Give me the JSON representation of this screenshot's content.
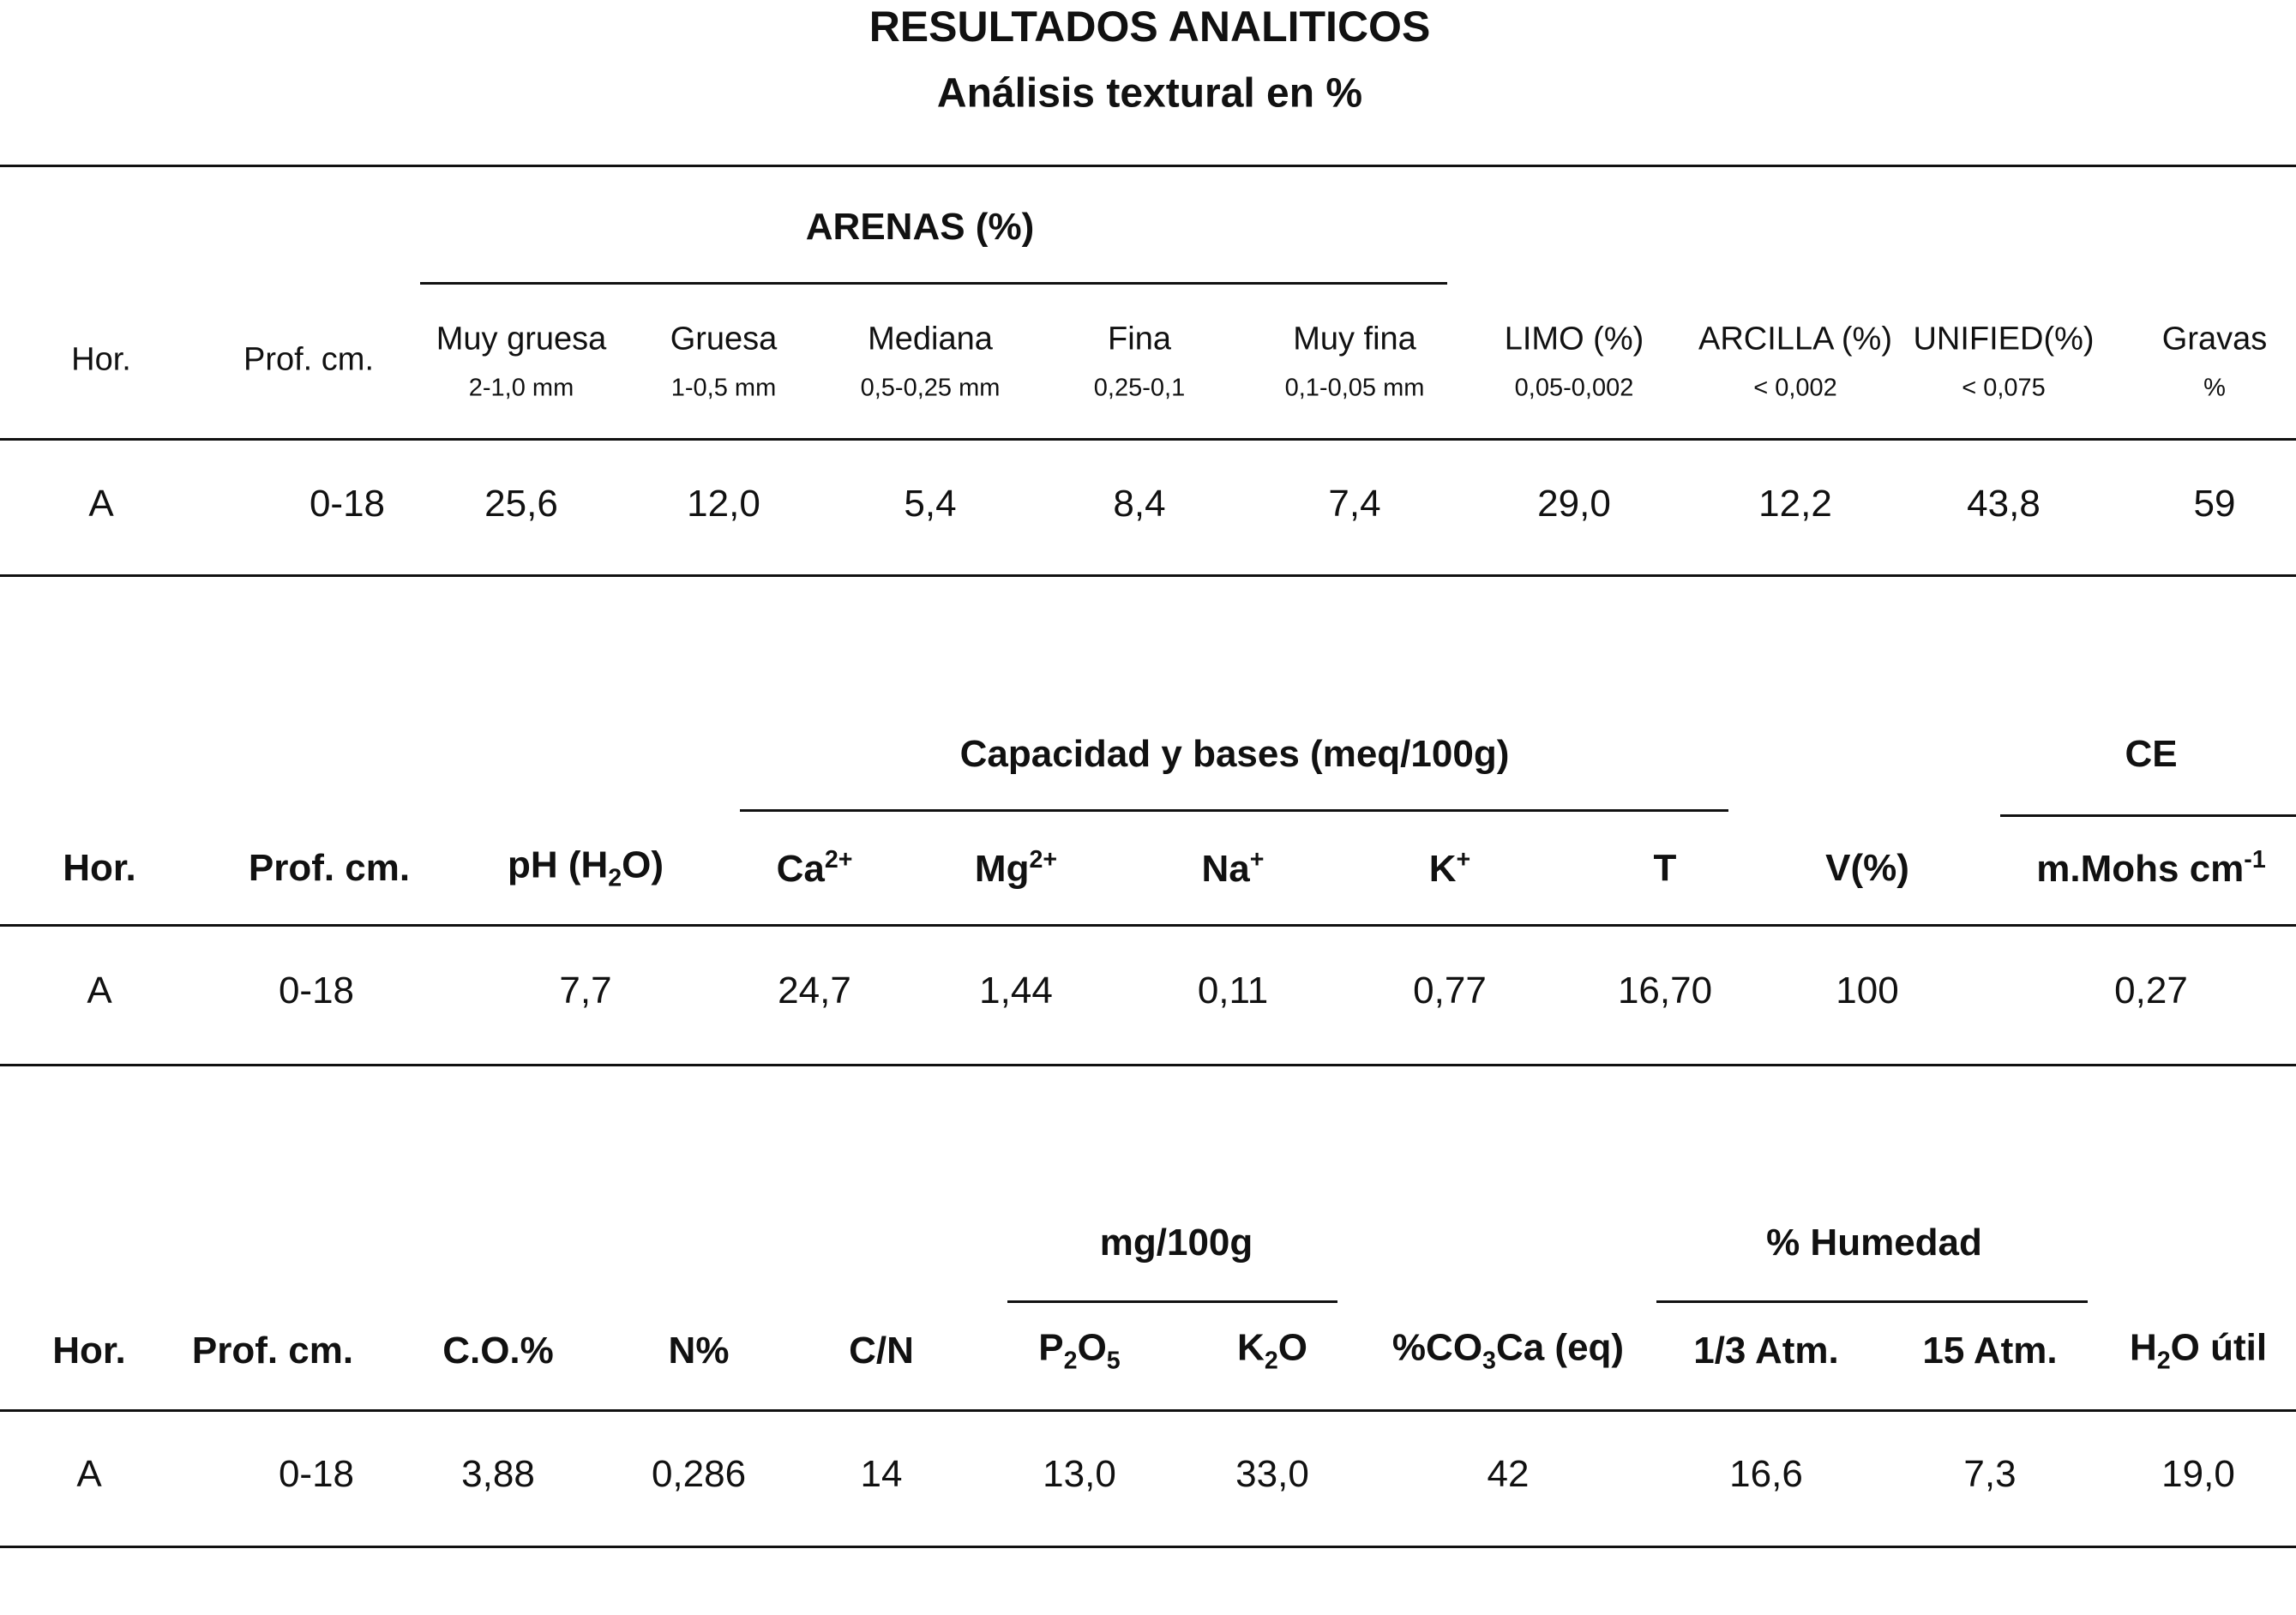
{
  "title": "RESULTADOS ANALITICOS",
  "subtitle": "Análisis textural en %",
  "table1": {
    "group_header": "ARENAS (%)",
    "headers": [
      {
        "label": "Hor.",
        "sub": ""
      },
      {
        "label": "Prof. cm.",
        "sub": ""
      },
      {
        "label": "Muy gruesa",
        "sub": "2-1,0 mm"
      },
      {
        "label": "Gruesa",
        "sub": "1-0,5 mm"
      },
      {
        "label": "Mediana",
        "sub": "0,5-0,25 mm"
      },
      {
        "label": "Fina",
        "sub": "0,25-0,1"
      },
      {
        "label": "Muy fina",
        "sub": "0,1-0,05 mm"
      },
      {
        "label": "LIMO (%)",
        "sub": "0,05-0,002"
      },
      {
        "label": "ARCILLA (%)",
        "sub": "< 0,002"
      },
      {
        "label": "UNIFIED(%)",
        "sub": "< 0,075"
      },
      {
        "label": "Gravas",
        "sub": "%"
      }
    ],
    "row": [
      "A",
      "0-18",
      "25,6",
      "12,0",
      "5,4",
      "8,4",
      "7,4",
      "29,0",
      "12,2",
      "43,8",
      "59"
    ]
  },
  "table2": {
    "group_header": "Capacidad y bases (meq/100g)",
    "ce_header": "CE",
    "headers": {
      "hor": "Hor.",
      "prof": "Prof. cm.",
      "ph": [
        "pH (H",
        "2",
        "O)"
      ],
      "ca": [
        "Ca",
        "2+"
      ],
      "mg": [
        "Mg",
        "2+"
      ],
      "na": [
        "Na",
        "+"
      ],
      "k": [
        "K",
        "+"
      ],
      "t": "T",
      "v": "V(%)",
      "ce": [
        "m.Mohs cm",
        "-1"
      ]
    },
    "row": [
      "A",
      "0-18",
      "7,7",
      "24,7",
      "1,44",
      "0,11",
      "0,77",
      "16,70",
      "100",
      "0,27"
    ]
  },
  "table3": {
    "group_mg": "mg/100g",
    "group_humedad": "% Humedad",
    "headers": {
      "hor": "Hor.",
      "prof": "Prof. cm.",
      "co": "C.O.%",
      "n": "N%",
      "cn": "C/N",
      "p2o5": [
        "P",
        "2",
        "O",
        "5"
      ],
      "k2o": [
        "K",
        "2",
        "O"
      ],
      "co3ca": [
        "%CO",
        "3",
        "Ca (eq)"
      ],
      "atm13": "1/3 Atm.",
      "atm15": "15 Atm.",
      "h2o": [
        "H",
        "2",
        "O útil"
      ]
    },
    "row": [
      "A",
      "0-18",
      "3,88",
      "0,286",
      "14",
      "13,0",
      "33,0",
      "42",
      "16,6",
      "7,3",
      "19,0"
    ]
  }
}
